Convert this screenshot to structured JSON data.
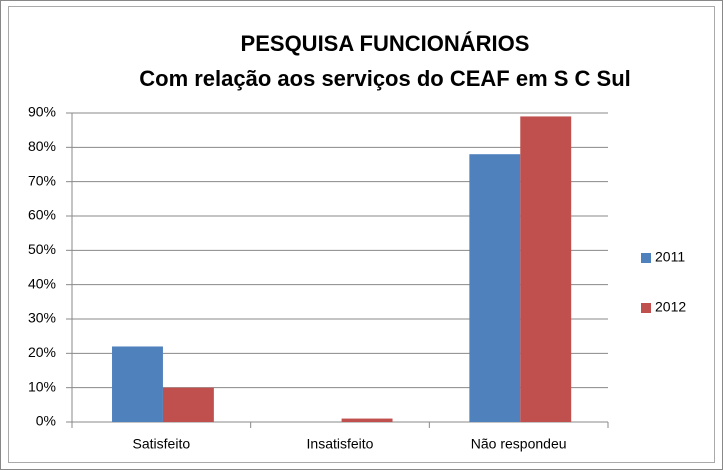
{
  "chart_data": {
    "type": "bar",
    "title": [
      "PESQUISA FUNCIONÁRIOS",
      "Com relação aos serviços do CEAF em S C Sul"
    ],
    "categories": [
      "Satisfeito",
      "Insatisfeito",
      "Não respondeu"
    ],
    "series": [
      {
        "name": "2011",
        "color": "#4f81bd",
        "values": [
          22,
          0,
          78
        ]
      },
      {
        "name": "2012",
        "color": "#c0504d",
        "values": [
          10,
          1,
          89
        ]
      }
    ],
    "ylim": [
      0,
      90
    ],
    "yticks": [
      {
        "value": 0,
        "label": "0%"
      },
      {
        "value": 10,
        "label": "10%"
      },
      {
        "value": 20,
        "label": "20%"
      },
      {
        "value": 30,
        "label": "30%"
      },
      {
        "value": 40,
        "label": "40%"
      },
      {
        "value": 50,
        "label": "50%"
      },
      {
        "value": 60,
        "label": "60%"
      },
      {
        "value": 70,
        "label": "70%"
      },
      {
        "value": 80,
        "label": "80%"
      },
      {
        "value": 90,
        "label": "90%"
      }
    ],
    "grid": true,
    "legend": "right"
  }
}
